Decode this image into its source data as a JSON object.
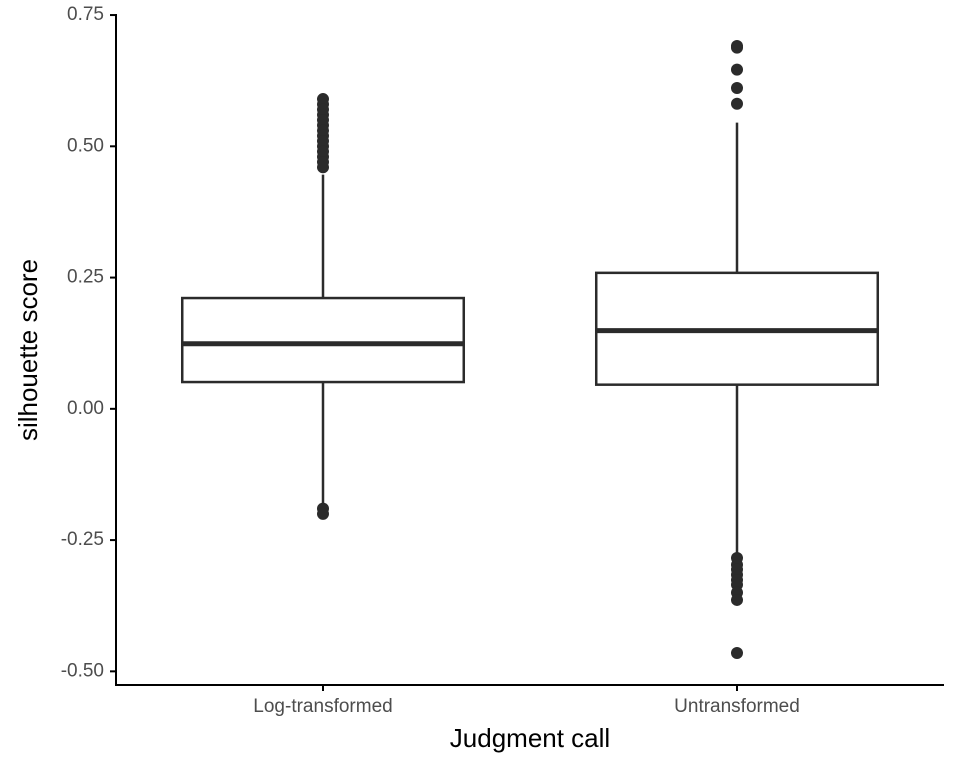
{
  "chart_data": {
    "type": "boxplot",
    "x_label": "Judgment call",
    "y_label": "silhouette score",
    "categories": [
      "Log-transformed",
      "Untransformed"
    ],
    "color": "#2b2b2b",
    "boxes": [
      {
        "q1": 0.051,
        "median": 0.124,
        "q3": 0.211,
        "whisker_low": -0.183,
        "whisker_high": 0.446,
        "outliers": [
          0.59,
          0.58,
          0.57,
          0.56,
          0.55,
          0.54,
          0.53,
          0.52,
          0.51,
          0.5,
          0.49,
          0.48,
          0.47,
          0.46,
          -0.19,
          -0.2
        ]
      },
      {
        "q1": 0.046,
        "median": 0.149,
        "q3": 0.259,
        "whisker_low": -0.274,
        "whisker_high": 0.545,
        "outliers": [
          0.691,
          0.688,
          0.646,
          0.611,
          0.581,
          -0.284,
          -0.297,
          -0.306,
          -0.316,
          -0.326,
          -0.335,
          -0.35,
          -0.364,
          -0.465
        ]
      }
    ],
    "ylim": [
      -0.526,
      0.752
    ],
    "yticks": [
      {
        "value": -0.5,
        "label": "-0.50"
      },
      {
        "value": -0.25,
        "label": "-0.25"
      },
      {
        "value": 0,
        "label": "0.00"
      },
      {
        "value": 0.25,
        "label": "0.25"
      },
      {
        "value": 0.5,
        "label": "0.50"
      },
      {
        "value": 0.75,
        "label": "0.75"
      }
    ],
    "grid": false
  }
}
